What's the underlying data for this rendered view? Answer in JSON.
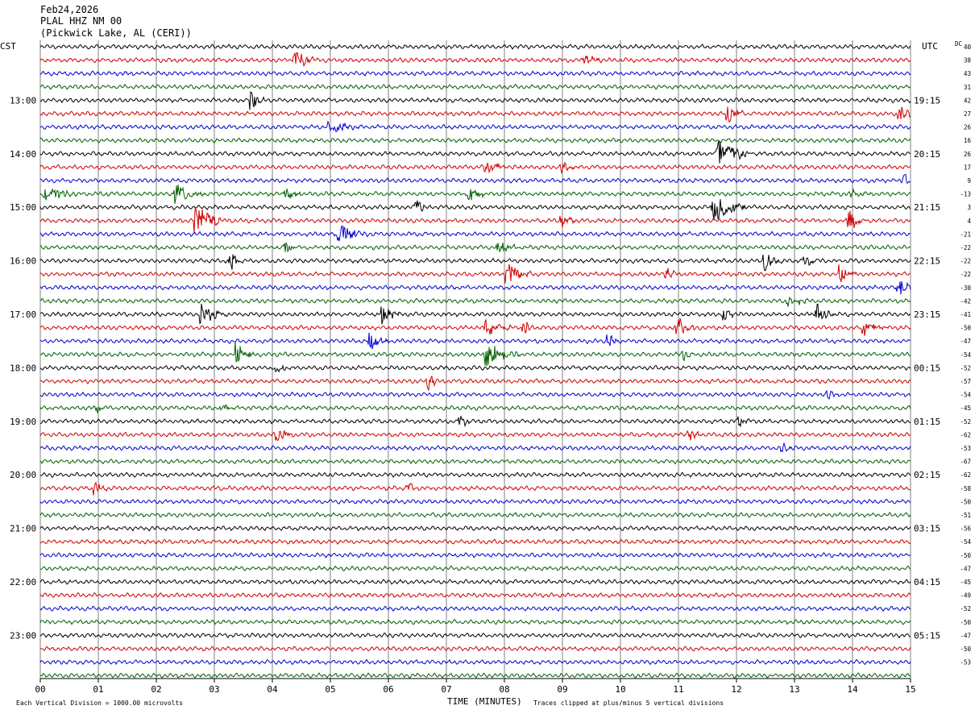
{
  "header": {
    "date": "Feb24,2026",
    "station": "PLAL HHZ NM 00",
    "location": "(Pickwick Lake, AL (CERI))"
  },
  "left_zone": "CST",
  "right_zone": "UTC",
  "dc_header": "DC",
  "x_axis_title": "TIME (MINUTES)",
  "footer_left": "Each Vertical Division = 1000.00 microvolts",
  "footer_right": "Traces clipped at plus/minus 5 vertical divisions",
  "colors": {
    "trace_cycle": [
      "#000000",
      "#d00000",
      "#0000d0",
      "#006000"
    ],
    "grid": "#808080",
    "background": "#ffffff"
  },
  "chart_data": {
    "type": "line",
    "description_type": "helicorder",
    "xlim": [
      0,
      15
    ],
    "x_ticks": [
      "00",
      "01",
      "02",
      "03",
      "04",
      "05",
      "06",
      "07",
      "08",
      "09",
      "10",
      "11",
      "12",
      "13",
      "14",
      "15"
    ],
    "trace_count": 48,
    "minutes_per_trace": 15,
    "left_time_labels": [
      {
        "trace": 4,
        "label": "13:00"
      },
      {
        "trace": 8,
        "label": "14:00"
      },
      {
        "trace": 12,
        "label": "15:00"
      },
      {
        "trace": 16,
        "label": "16:00"
      },
      {
        "trace": 20,
        "label": "17:00"
      },
      {
        "trace": 24,
        "label": "18:00"
      },
      {
        "trace": 28,
        "label": "19:00"
      },
      {
        "trace": 32,
        "label": "20:00"
      },
      {
        "trace": 36,
        "label": "21:00"
      },
      {
        "trace": 40,
        "label": "22:00"
      },
      {
        "trace": 44,
        "label": "23:00"
      }
    ],
    "right_time_labels": [
      {
        "trace": 4,
        "label": "19:15"
      },
      {
        "trace": 8,
        "label": "20:15"
      },
      {
        "trace": 12,
        "label": "21:15"
      },
      {
        "trace": 16,
        "label": "22:15"
      },
      {
        "trace": 20,
        "label": "23:15"
      },
      {
        "trace": 24,
        "label": "00:15"
      },
      {
        "trace": 28,
        "label": "01:15"
      },
      {
        "trace": 32,
        "label": "02:15"
      },
      {
        "trace": 36,
        "label": "03:15"
      },
      {
        "trace": 40,
        "label": "04:15"
      },
      {
        "trace": 44,
        "label": "05:15"
      }
    ],
    "dc_offsets": [
      "40",
      "38",
      "43",
      "31",
      "42",
      "27",
      "26",
      "16",
      "26",
      "17",
      "9",
      "-13",
      "3",
      "4",
      "-21",
      "-22",
      "-22",
      "-22",
      "-30",
      "-42",
      "-41",
      "-50",
      "-47",
      "-54",
      "-52",
      "-57",
      "-54",
      "-45",
      "-52",
      "-62",
      "-53",
      "-67",
      "-62",
      "-58",
      "-50",
      "-51",
      "-56",
      "-54",
      "-50",
      "-47",
      "-45",
      "-49",
      "-52",
      "-50",
      "-47",
      "-50",
      "-53"
    ],
    "events": [
      {
        "trace": 1,
        "minute": 4.4,
        "amp": 9,
        "dur": 0.4
      },
      {
        "trace": 1,
        "minute": 9.4,
        "amp": 5,
        "dur": 0.3
      },
      {
        "trace": 4,
        "minute": 3.65,
        "amp": 9,
        "dur": 0.2
      },
      {
        "trace": 5,
        "minute": 11.85,
        "amp": 9,
        "dur": 0.3
      },
      {
        "trace": 5,
        "minute": 14.8,
        "amp": 7,
        "dur": 0.4
      },
      {
        "trace": 6,
        "minute": 5.0,
        "amp": 6,
        "dur": 0.5
      },
      {
        "trace": 8,
        "minute": 11.7,
        "amp": 16,
        "dur": 0.6
      },
      {
        "trace": 9,
        "minute": 7.7,
        "amp": 5,
        "dur": 0.6
      },
      {
        "trace": 9,
        "minute": 9.0,
        "amp": 5,
        "dur": 0.2
      },
      {
        "trace": 10,
        "minute": 14.9,
        "amp": 7,
        "dur": 0.3
      },
      {
        "trace": 11,
        "minute": 0.1,
        "amp": 8,
        "dur": 0.5
      },
      {
        "trace": 11,
        "minute": 2.35,
        "amp": 10,
        "dur": 0.5
      },
      {
        "trace": 11,
        "minute": 4.25,
        "amp": 7,
        "dur": 0.3
      },
      {
        "trace": 11,
        "minute": 7.4,
        "amp": 8,
        "dur": 0.3
      },
      {
        "trace": 11,
        "minute": 14.0,
        "amp": 4,
        "dur": 0.3
      },
      {
        "trace": 12,
        "minute": 6.5,
        "amp": 8,
        "dur": 0.15
      },
      {
        "trace": 12,
        "minute": 11.6,
        "amp": 16,
        "dur": 0.6
      },
      {
        "trace": 13,
        "minute": 2.7,
        "amp": 16,
        "dur": 0.5
      },
      {
        "trace": 13,
        "minute": 9.0,
        "amp": 5,
        "dur": 0.3
      },
      {
        "trace": 13,
        "minute": 13.95,
        "amp": 10,
        "dur": 0.3
      },
      {
        "trace": 14,
        "minute": 5.15,
        "amp": 10,
        "dur": 0.5
      },
      {
        "trace": 15,
        "minute": 4.25,
        "amp": 6,
        "dur": 0.2
      },
      {
        "trace": 15,
        "minute": 7.9,
        "amp": 5,
        "dur": 0.4
      },
      {
        "trace": 16,
        "minute": 3.3,
        "amp": 10,
        "dur": 0.15
      },
      {
        "trace": 16,
        "minute": 12.5,
        "amp": 9,
        "dur": 0.3
      },
      {
        "trace": 16,
        "minute": 13.2,
        "amp": 7,
        "dur": 0.2
      },
      {
        "trace": 17,
        "minute": 8.05,
        "amp": 16,
        "dur": 0.4
      },
      {
        "trace": 17,
        "minute": 10.8,
        "amp": 7,
        "dur": 0.2
      },
      {
        "trace": 17,
        "minute": 13.8,
        "amp": 8,
        "dur": 0.3
      },
      {
        "trace": 18,
        "minute": 14.8,
        "amp": 9,
        "dur": 0.3
      },
      {
        "trace": 19,
        "minute": 12.9,
        "amp": 5,
        "dur": 0.4
      },
      {
        "trace": 20,
        "minute": 2.8,
        "amp": 10,
        "dur": 0.4
      },
      {
        "trace": 20,
        "minute": 5.9,
        "amp": 11,
        "dur": 0.3
      },
      {
        "trace": 20,
        "minute": 11.8,
        "amp": 6,
        "dur": 0.2
      },
      {
        "trace": 20,
        "minute": 13.4,
        "amp": 9,
        "dur": 0.3
      },
      {
        "trace": 21,
        "minute": 7.7,
        "amp": 9,
        "dur": 0.4
      },
      {
        "trace": 21,
        "minute": 8.35,
        "amp": 8,
        "dur": 0.15
      },
      {
        "trace": 21,
        "minute": 11.0,
        "amp": 10,
        "dur": 0.3
      },
      {
        "trace": 21,
        "minute": 14.2,
        "amp": 7,
        "dur": 0.4
      },
      {
        "trace": 22,
        "minute": 5.7,
        "amp": 8,
        "dur": 0.3
      },
      {
        "trace": 22,
        "minute": 9.8,
        "amp": 6,
        "dur": 0.2
      },
      {
        "trace": 23,
        "minute": 3.4,
        "amp": 14,
        "dur": 0.3
      },
      {
        "trace": 23,
        "minute": 7.7,
        "amp": 12,
        "dur": 0.6
      },
      {
        "trace": 23,
        "minute": 11.1,
        "amp": 5,
        "dur": 0.2
      },
      {
        "trace": 24,
        "minute": 4.1,
        "amp": 5,
        "dur": 0.2
      },
      {
        "trace": 25,
        "minute": 6.7,
        "amp": 7,
        "dur": 0.2
      },
      {
        "trace": 26,
        "minute": 13.55,
        "amp": 5,
        "dur": 0.2
      },
      {
        "trace": 27,
        "minute": 1.0,
        "amp": 5,
        "dur": 0.2
      },
      {
        "trace": 27,
        "minute": 3.15,
        "amp": 5,
        "dur": 0.2
      },
      {
        "trace": 28,
        "minute": 7.25,
        "amp": 5,
        "dur": 0.2
      },
      {
        "trace": 28,
        "minute": 12.05,
        "amp": 6,
        "dur": 0.2
      },
      {
        "trace": 29,
        "minute": 4.1,
        "amp": 6,
        "dur": 0.3
      },
      {
        "trace": 29,
        "minute": 11.2,
        "amp": 5,
        "dur": 0.2
      },
      {
        "trace": 30,
        "minute": 12.8,
        "amp": 4,
        "dur": 0.2
      },
      {
        "trace": 33,
        "minute": 0.95,
        "amp": 7,
        "dur": 0.2
      },
      {
        "trace": 33,
        "minute": 6.35,
        "amp": 5,
        "dur": 0.2
      }
    ]
  }
}
